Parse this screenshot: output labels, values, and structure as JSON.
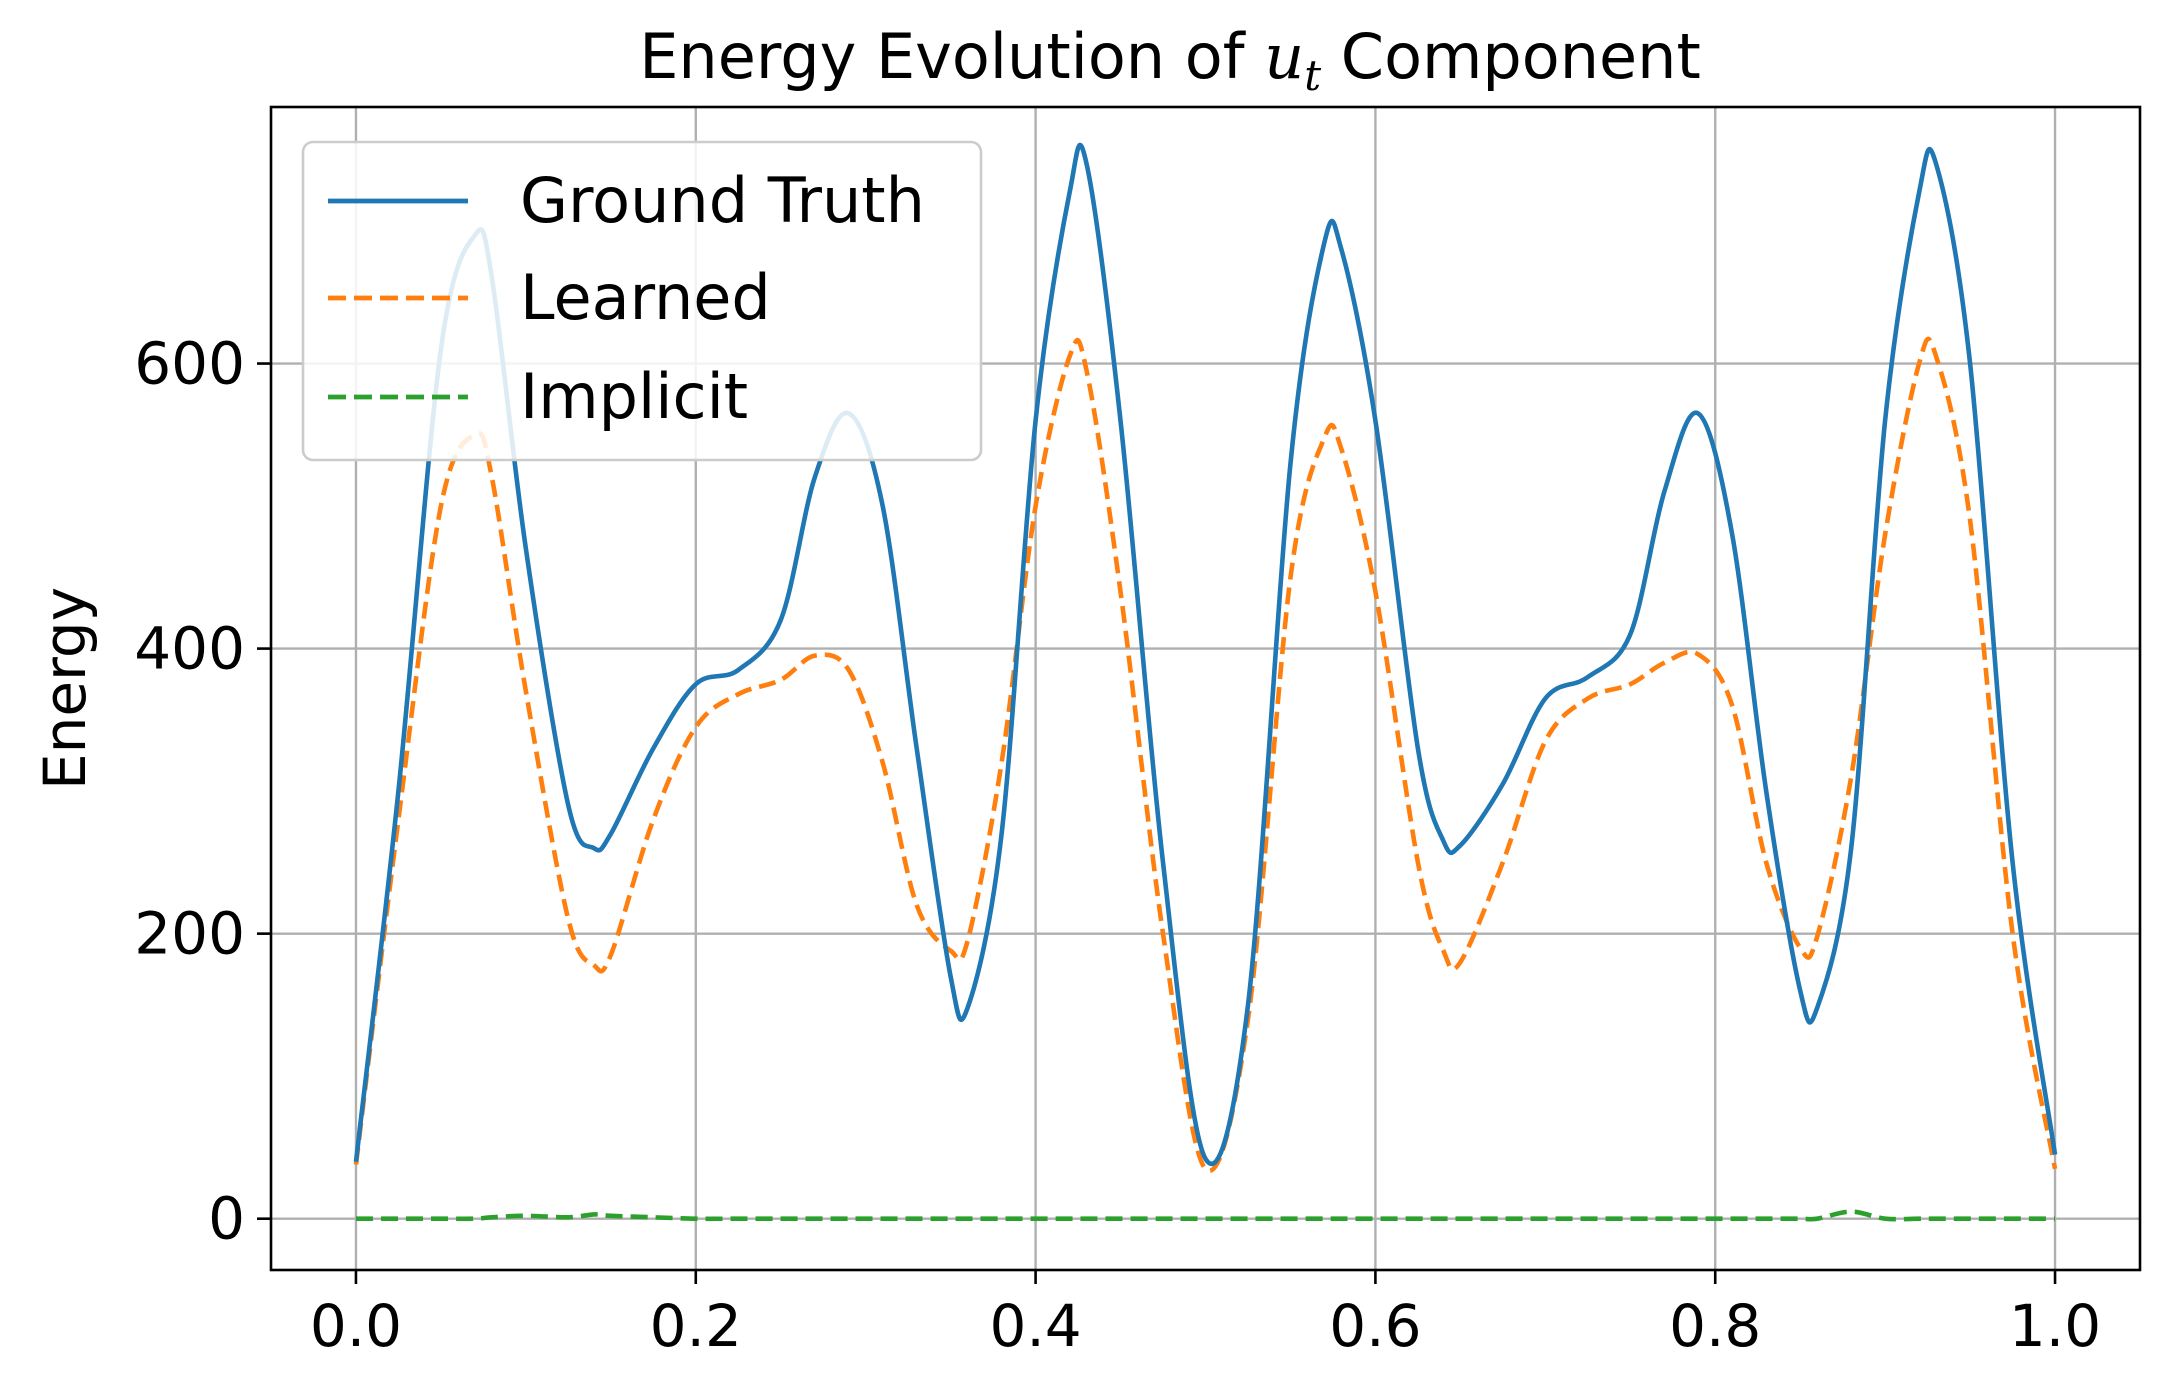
{
  "chart_data": {
    "type": "line",
    "title_prefix": "Energy Evolution of ",
    "title_var": "u",
    "title_sub": "t",
    "title_suffix": " Component",
    "xlabel": "",
    "ylabel": "Energy",
    "xlim": [
      -0.05,
      1.05
    ],
    "ylim": [
      -36,
      780
    ],
    "xticks": [
      0.0,
      0.2,
      0.4,
      0.6,
      0.8,
      1.0
    ],
    "xtick_labels": [
      "0.0",
      "0.2",
      "0.4",
      "0.6",
      "0.8",
      "1.0"
    ],
    "yticks": [
      0,
      200,
      400,
      600
    ],
    "ytick_labels": [
      "0",
      "200",
      "400",
      "600"
    ],
    "grid": true,
    "legend_position": "top-left",
    "x": [
      0.0,
      0.025,
      0.05,
      0.07,
      0.08,
      0.1,
      0.125,
      0.14,
      0.15,
      0.175,
      0.2,
      0.225,
      0.25,
      0.27,
      0.29,
      0.31,
      0.33,
      0.35,
      0.36,
      0.38,
      0.4,
      0.42,
      0.43,
      0.45,
      0.475,
      0.5,
      0.525,
      0.55,
      0.57,
      0.58,
      0.6,
      0.625,
      0.64,
      0.65,
      0.675,
      0.7,
      0.725,
      0.75,
      0.77,
      0.79,
      0.81,
      0.83,
      0.85,
      0.86,
      0.88,
      0.9,
      0.92,
      0.93,
      0.95,
      0.975,
      1.0
    ],
    "series": [
      {
        "name": "Ground Truth",
        "color": "#1f77b4",
        "style": "solid",
        "values": [
          40,
          300,
          610,
          690,
          660,
          470,
          290,
          260,
          270,
          330,
          375,
          385,
          420,
          520,
          565,
          500,
          330,
          170,
          148,
          270,
          560,
          720,
          740,
          560,
          250,
          42,
          150,
          530,
          685,
          680,
          560,
          330,
          265,
          262,
          305,
          365,
          380,
          410,
          510,
          565,
          480,
          300,
          160,
          148,
          260,
          560,
          720,
          740,
          600,
          250,
          45
        ]
      },
      {
        "name": "Learned",
        "color": "#ff7f0e",
        "style": "dashed",
        "values": [
          38,
          280,
          500,
          550,
          520,
          370,
          210,
          178,
          185,
          280,
          345,
          368,
          378,
          395,
          385,
          320,
          220,
          188,
          195,
          320,
          500,
          605,
          595,
          440,
          200,
          35,
          140,
          450,
          548,
          540,
          440,
          250,
          188,
          180,
          250,
          335,
          365,
          375,
          390,
          396,
          360,
          250,
          190,
          198,
          310,
          480,
          600,
          605,
          490,
          200,
          35
        ]
      },
      {
        "name": "Implicit",
        "color": "#2ca02c",
        "style": "dashed",
        "values": [
          0,
          0,
          0,
          0,
          1,
          2,
          1,
          3,
          2,
          1,
          0,
          0,
          0,
          0,
          0,
          0,
          0,
          0,
          0,
          0,
          0,
          0,
          0,
          0,
          0,
          0,
          0,
          0,
          0,
          0,
          0,
          0,
          0,
          0,
          0,
          0,
          0,
          0,
          0,
          0,
          0,
          0,
          0,
          0,
          5,
          0,
          0,
          0,
          0,
          0,
          0
        ]
      }
    ]
  }
}
